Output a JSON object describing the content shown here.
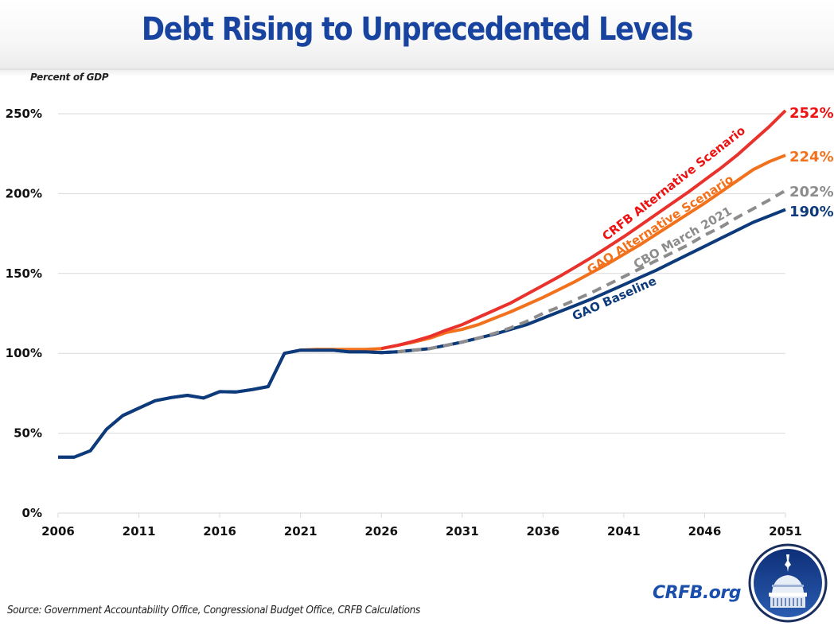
{
  "header": {
    "title": "Debt Rising to Unprecedented Levels"
  },
  "footer": {
    "source": "Source: Government Accountability Office, Congressional Budget Office, CRFB Calculations",
    "brand": "CRFB.org",
    "logo_icon": "capitol-dome-logo-icon"
  },
  "colors": {
    "title": "#1844a0",
    "crfb_alt": "#e8322b",
    "crfb_alt_label": "#ee1111",
    "gao_alt": "#f2711c",
    "cbo": "#8c8c8c",
    "gao_baseline": "#0d3a7a",
    "gridline": "#d9d9d9",
    "brand": "#1a4fae"
  },
  "chart_data": {
    "type": "line",
    "title": "Debt Rising to Unprecedented Levels",
    "xlabel": "",
    "ylabel": "Percent of GDP",
    "xlim": [
      2006,
      2051
    ],
    "ylim": [
      0,
      250
    ],
    "grid": true,
    "x_ticks": [
      "2006",
      "2011",
      "2016",
      "2021",
      "2026",
      "2031",
      "2036",
      "2041",
      "2046",
      "2051"
    ],
    "y_ticks": [
      "0%",
      "50%",
      "100%",
      "150%",
      "200%",
      "250%"
    ],
    "y_tick_values": [
      0,
      50,
      100,
      150,
      200,
      250
    ],
    "legend": "inline labels along lines",
    "series": [
      {
        "name": "CRFB Alternative Scenario",
        "key": "crfb_alt",
        "style": "solid",
        "end_label": "252%",
        "x": [
          2026,
          2027,
          2028,
          2029,
          2030,
          2031,
          2032,
          2033,
          2034,
          2035,
          2036,
          2037,
          2038,
          2039,
          2040,
          2041,
          2042,
          2043,
          2044,
          2045,
          2046,
          2047,
          2048,
          2049,
          2050,
          2051
        ],
        "values": [
          103,
          105,
          107.5,
          110.5,
          114.5,
          118,
          122.5,
          127,
          131.5,
          137,
          142.5,
          148,
          154,
          160,
          166.5,
          173,
          180,
          187,
          194,
          201,
          208.5,
          216,
          224,
          233,
          242,
          252
        ]
      },
      {
        "name": "GAO Alternative Scenario",
        "key": "gao_alt",
        "style": "solid",
        "end_label": "224%",
        "x": [
          2021,
          2022,
          2023,
          2024,
          2025,
          2026,
          2027,
          2028,
          2029,
          2030,
          2031,
          2032,
          2033,
          2034,
          2035,
          2036,
          2037,
          2038,
          2039,
          2040,
          2041,
          2042,
          2043,
          2044,
          2045,
          2046,
          2047,
          2048,
          2049,
          2050,
          2051
        ],
        "values": [
          102,
          102.5,
          102.5,
          102.5,
          102.5,
          103,
          105,
          107,
          109.5,
          113,
          115,
          118,
          122,
          126,
          130.5,
          135,
          140,
          145,
          150.5,
          156,
          162,
          168,
          174.5,
          181,
          187.5,
          194,
          201,
          208,
          215,
          220,
          224
        ]
      },
      {
        "name": "CBO March 2021",
        "key": "cbo",
        "style": "dashed",
        "end_label": "202%",
        "x": [
          2021,
          2022,
          2023,
          2024,
          2025,
          2026,
          2027,
          2028,
          2029,
          2030,
          2031,
          2032,
          2033,
          2034,
          2035,
          2036,
          2037,
          2038,
          2039,
          2040,
          2041,
          2042,
          2043,
          2044,
          2045,
          2046,
          2047,
          2048,
          2049,
          2050,
          2051
        ],
        "values": [
          102,
          102,
          102,
          101,
          101,
          100.5,
          101,
          102,
          103,
          105,
          107,
          109.5,
          112.5,
          116,
          120,
          125,
          129,
          133.5,
          138,
          143,
          148,
          153,
          158,
          163,
          168,
          174,
          179,
          185,
          190.5,
          196,
          202
        ]
      },
      {
        "name": "GAO Baseline",
        "key": "gao_baseline",
        "style": "solid",
        "end_label": "190%",
        "x": [
          2006,
          2007,
          2008,
          2009,
          2010,
          2011,
          2012,
          2013,
          2014,
          2015,
          2016,
          2017,
          2018,
          2019,
          2020,
          2021,
          2022,
          2023,
          2024,
          2025,
          2026,
          2027,
          2028,
          2029,
          2030,
          2031,
          2032,
          2033,
          2034,
          2035,
          2036,
          2037,
          2038,
          2039,
          2040,
          2041,
          2042,
          2043,
          2044,
          2045,
          2046,
          2047,
          2048,
          2049,
          2050,
          2051
        ],
        "values": [
          35,
          35,
          39,
          52.5,
          61,
          65.7,
          70.3,
          72.3,
          73.7,
          72,
          76,
          75.8,
          77.3,
          79.2,
          100,
          102,
          102,
          102,
          101,
          101,
          100.5,
          101,
          102,
          103,
          105,
          107,
          109.5,
          112,
          115,
          118,
          122,
          126,
          130,
          134,
          138.5,
          143,
          147.5,
          152,
          157,
          162,
          167,
          172,
          177,
          182,
          186,
          190
        ]
      }
    ],
    "annotations": [
      {
        "text": "CRFB Alternative Scenario",
        "series": "crfb_alt"
      },
      {
        "text": "GAO Alternative Scenario",
        "series": "gao_alt"
      },
      {
        "text": "CBO March 2021",
        "series": "cbo"
      },
      {
        "text": "GAO Baseline",
        "series": "gao_baseline"
      }
    ]
  }
}
